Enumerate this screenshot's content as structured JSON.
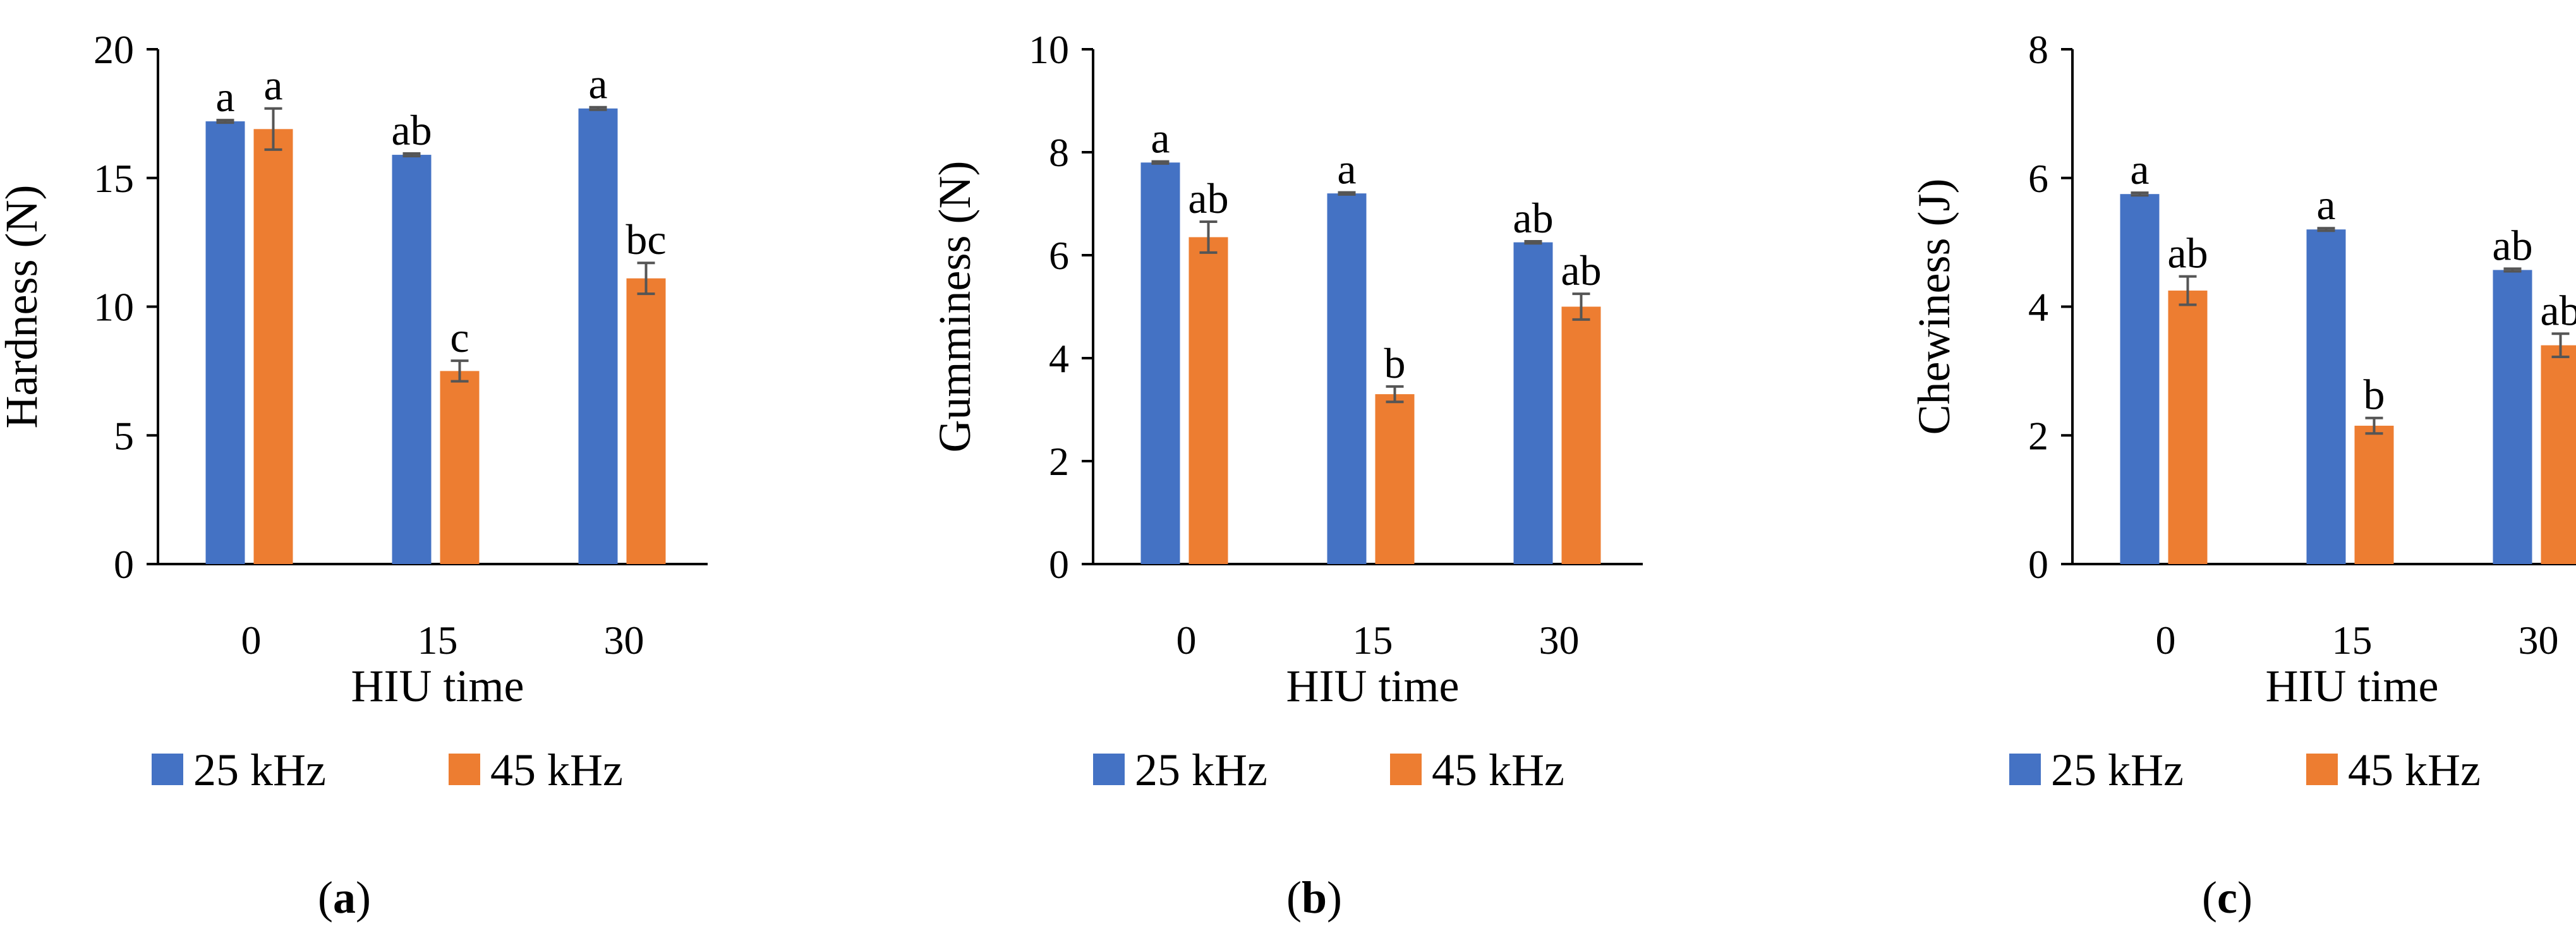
{
  "figure": {
    "charts": [
      {
        "type": "bar",
        "title": "",
        "ylabel": "Hardness (N)",
        "xlabel": "HIU time",
        "categories": [
          "0",
          "15",
          "30"
        ],
        "yticks": [
          "0",
          "5",
          "10",
          "15",
          "20"
        ],
        "ylim": [
          0,
          20
        ],
        "grid": false,
        "legend_position": "bottom",
        "series": [
          {
            "name": "25 kHz",
            "color": "#4472C4",
            "values": [
              17.2,
              15.9,
              17.7
            ],
            "errors": [
              0.05,
              0.05,
              0.05
            ],
            "labels": [
              "a",
              "ab",
              "a"
            ]
          },
          {
            "name": "45 kHz",
            "color": "#ED7D31",
            "values": [
              16.9,
              7.5,
              11.1
            ],
            "errors": [
              0.8,
              0.4,
              0.6
            ],
            "labels": [
              "a",
              "c",
              "bc"
            ]
          }
        ],
        "panel": {
          "open": "(",
          "letter": "a",
          "close": ")"
        }
      },
      {
        "type": "bar",
        "title": "",
        "ylabel": "Gumminess (N)",
        "xlabel": "HIU time",
        "categories": [
          "0",
          "15",
          "30"
        ],
        "yticks": [
          "0",
          "2",
          "4",
          "6",
          "8",
          "10"
        ],
        "ylim": [
          0,
          10
        ],
        "grid": false,
        "legend_position": "bottom",
        "series": [
          {
            "name": "25 kHz",
            "color": "#4472C4",
            "values": [
              7.8,
              7.2,
              6.25
            ],
            "errors": [
              0.02,
              0.02,
              0.02
            ],
            "labels": [
              "a",
              "a",
              "ab"
            ]
          },
          {
            "name": "45 kHz",
            "color": "#ED7D31",
            "values": [
              6.35,
              3.3,
              5.0
            ],
            "errors": [
              0.3,
              0.15,
              0.25
            ],
            "labels": [
              "ab",
              "b",
              "ab"
            ]
          }
        ],
        "panel": {
          "open": "(",
          "letter": "b",
          "close": ")"
        }
      },
      {
        "type": "bar",
        "title": "",
        "ylabel": "Chewiness (J)",
        "xlabel": "HIU time",
        "categories": [
          "0",
          "15",
          "30"
        ],
        "yticks": [
          "0",
          "2",
          "4",
          "6",
          "8"
        ],
        "ylim": [
          0,
          8
        ],
        "grid": false,
        "legend_position": "bottom",
        "series": [
          {
            "name": "25 kHz",
            "color": "#4472C4",
            "values": [
              5.75,
              5.2,
              4.57
            ],
            "errors": [
              0.02,
              0.02,
              0.02
            ],
            "labels": [
              "a",
              "a",
              "ab"
            ]
          },
          {
            "name": "45 kHz",
            "color": "#ED7D31",
            "values": [
              4.25,
              2.15,
              3.4
            ],
            "errors": [
              0.22,
              0.12,
              0.18
            ],
            "labels": [
              "ab",
              "b",
              "ab"
            ]
          }
        ],
        "panel": {
          "open": "(",
          "letter": "c",
          "close": ")"
        }
      }
    ]
  },
  "chart_data": [
    {
      "type": "bar",
      "title": "",
      "ylabel": "Hardness (N)",
      "xlabel": "HIU time",
      "categories": [
        "0",
        "15",
        "30"
      ],
      "ylim": [
        0,
        20
      ],
      "series": [
        {
          "name": "25 kHz",
          "values": [
            17.2,
            15.9,
            17.7
          ],
          "errors": [
            0.05,
            0.05,
            0.05
          ],
          "significance": [
            "a",
            "ab",
            "a"
          ]
        },
        {
          "name": "45 kHz",
          "values": [
            16.9,
            7.5,
            11.1
          ],
          "errors": [
            0.8,
            0.4,
            0.6
          ],
          "significance": [
            "a",
            "c",
            "bc"
          ]
        }
      ]
    },
    {
      "type": "bar",
      "title": "",
      "ylabel": "Gumminess (N)",
      "xlabel": "HIU time",
      "categories": [
        "0",
        "15",
        "30"
      ],
      "ylim": [
        0,
        10
      ],
      "series": [
        {
          "name": "25 kHz",
          "values": [
            7.8,
            7.2,
            6.25
          ],
          "errors": [
            0.02,
            0.02,
            0.02
          ],
          "significance": [
            "a",
            "a",
            "ab"
          ]
        },
        {
          "name": "45 kHz",
          "values": [
            6.35,
            3.3,
            5.0
          ],
          "errors": [
            0.3,
            0.15,
            0.25
          ],
          "significance": [
            "ab",
            "b",
            "ab"
          ]
        }
      ]
    },
    {
      "type": "bar",
      "title": "",
      "ylabel": "Chewiness (J)",
      "xlabel": "HIU time",
      "categories": [
        "0",
        "15",
        "30"
      ],
      "ylim": [
        0,
        8
      ],
      "series": [
        {
          "name": "25 kHz",
          "values": [
            5.75,
            5.2,
            4.57
          ],
          "errors": [
            0.02,
            0.02,
            0.02
          ],
          "significance": [
            "a",
            "a",
            "ab"
          ]
        },
        {
          "name": "45 kHz",
          "values": [
            4.25,
            2.15,
            3.4
          ],
          "errors": [
            0.22,
            0.12,
            0.18
          ],
          "significance": [
            "ab",
            "b",
            "ab"
          ]
        }
      ]
    }
  ]
}
